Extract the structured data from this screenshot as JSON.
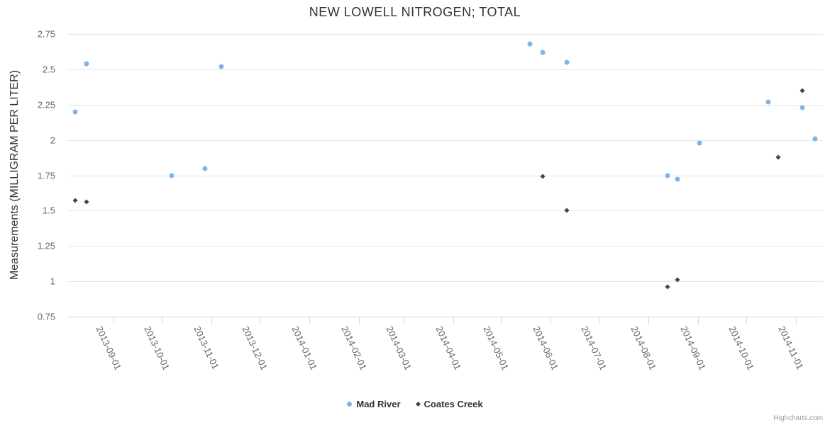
{
  "title": "NEW LOWELL NITROGEN; TOTAL",
  "credits": "Highcharts.com",
  "legend": {
    "items": [
      {
        "label": "Mad River",
        "marker": "circle",
        "color": "#7cb5ec"
      },
      {
        "label": "Coates Creek",
        "marker": "diamond",
        "color": "#434348"
      }
    ]
  },
  "colors": {
    "grid": "#e6e6e6",
    "axis_line": "#ccd6eb",
    "axis_label": "#666666",
    "title_text": "#333333"
  },
  "chart_data": {
    "type": "scatter",
    "title": "NEW LOWELL NITROGEN; TOTAL",
    "xlabel": "",
    "ylabel": "Measurements (MILLIGRAM PER LITER)",
    "ylim": [
      0.75,
      2.75
    ],
    "ytick_labels": [
      "0.75",
      "1",
      "1.25",
      "1.5",
      "1.75",
      "2",
      "2.25",
      "2.5",
      "2.75"
    ],
    "yticks": [
      0.75,
      1,
      1.25,
      1.5,
      1.75,
      2,
      2.25,
      2.5,
      2.75
    ],
    "xlim": [
      "2013-08-03",
      "2014-11-18"
    ],
    "xticks": [
      "2013-09-01",
      "2013-10-01",
      "2013-11-01",
      "2013-12-01",
      "2014-01-01",
      "2014-02-01",
      "2014-03-01",
      "2014-04-01",
      "2014-05-01",
      "2014-06-01",
      "2014-07-01",
      "2014-08-01",
      "2014-09-01",
      "2014-10-01",
      "2014-11-01"
    ],
    "grid": "horizontal",
    "legend_position": "bottom",
    "series": [
      {
        "name": "Mad River",
        "marker": "circle",
        "color": "#7cb5ec",
        "points": [
          [
            "2013-08-08",
            2.2
          ],
          [
            "2013-08-15",
            2.54
          ],
          [
            "2013-10-07",
            1.75
          ],
          [
            "2013-10-28",
            1.8
          ],
          [
            "2013-11-07",
            2.52
          ],
          [
            "2014-05-19",
            2.68
          ],
          [
            "2014-05-27",
            2.62
          ],
          [
            "2014-06-11",
            2.55
          ],
          [
            "2014-08-13",
            1.75
          ],
          [
            "2014-08-19",
            1.72
          ],
          [
            "2014-09-02",
            1.98
          ],
          [
            "2014-10-15",
            2.27
          ],
          [
            "2014-11-05",
            2.23
          ],
          [
            "2014-11-13",
            2.01
          ]
        ]
      },
      {
        "name": "Coates Creek",
        "marker": "diamond",
        "color": "#434348",
        "points": [
          [
            "2013-08-08",
            1.57
          ],
          [
            "2013-08-15",
            1.56
          ],
          [
            "2014-05-27",
            1.74
          ],
          [
            "2014-06-11",
            1.5
          ],
          [
            "2014-08-13",
            0.96
          ],
          [
            "2014-08-19",
            1.01
          ],
          [
            "2014-10-21",
            1.88
          ],
          [
            "2014-11-05",
            2.35
          ]
        ]
      }
    ]
  }
}
